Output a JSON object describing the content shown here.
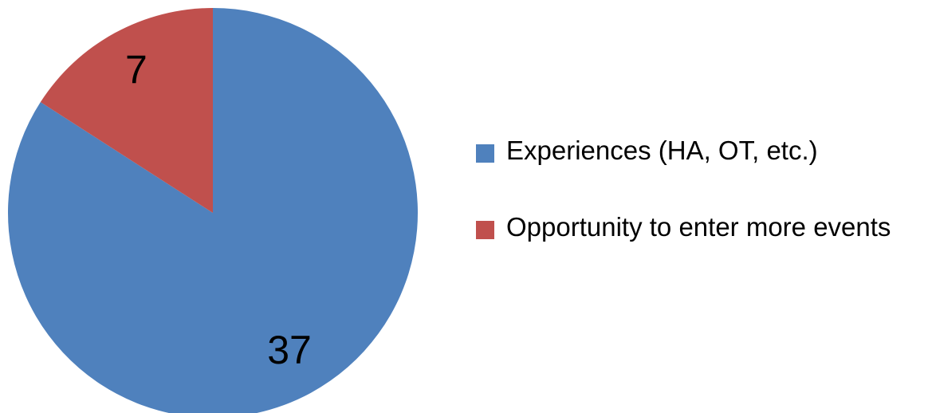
{
  "chart_data": {
    "type": "pie",
    "categories": [
      "Experiences (HA, OT, etc.)",
      "Opportunity to enter more events"
    ],
    "values": [
      37,
      7
    ],
    "colors": [
      "#4f81bd",
      "#c0504d"
    ]
  }
}
